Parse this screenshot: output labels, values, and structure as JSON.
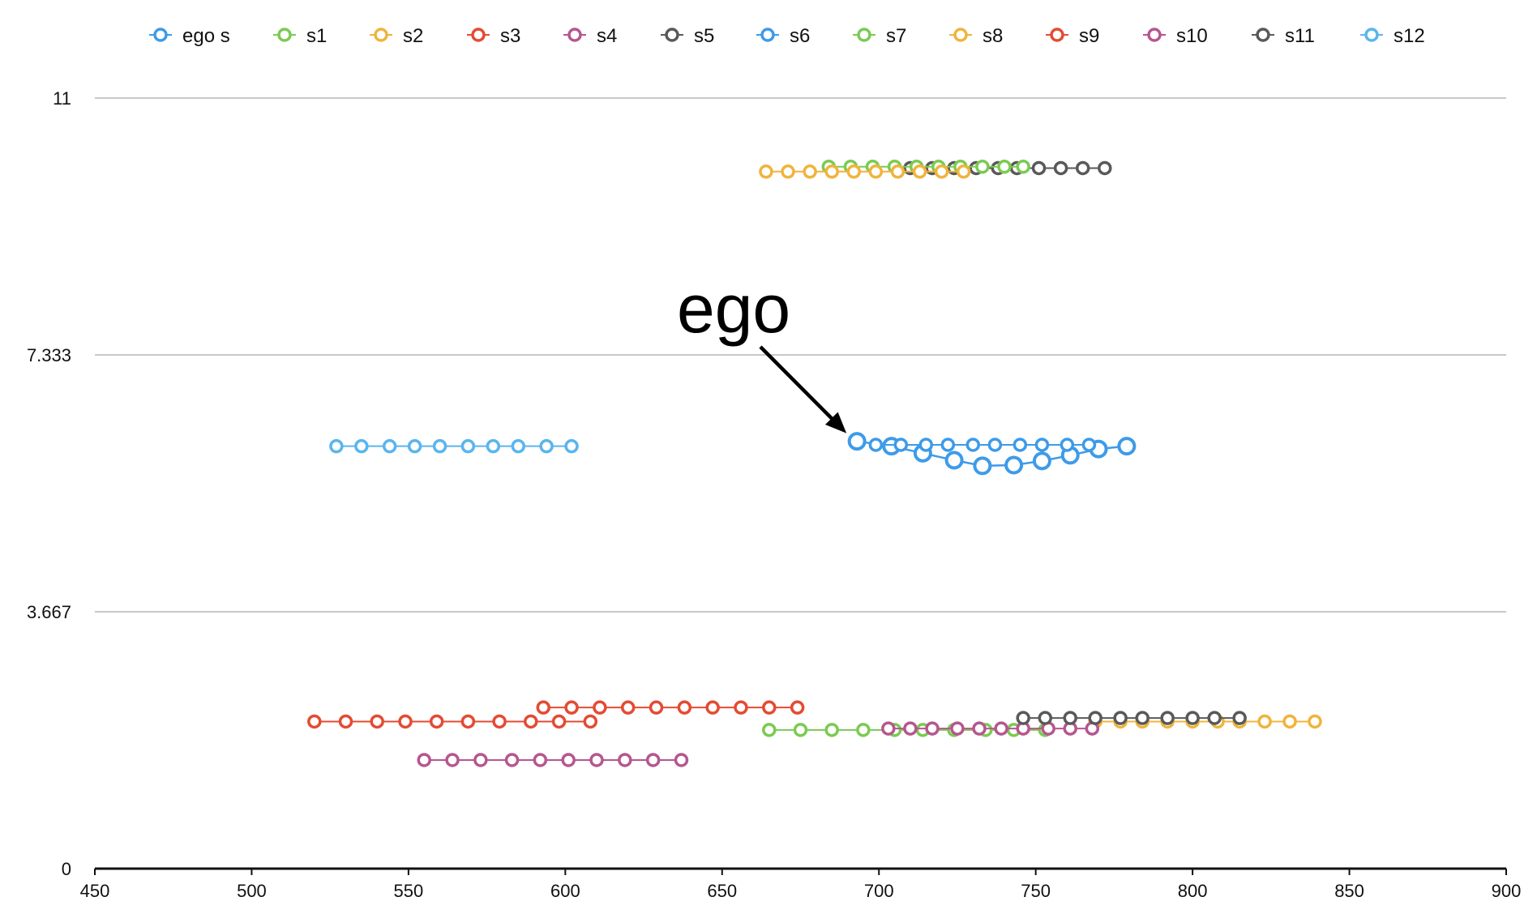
{
  "chart_data": {
    "type": "line",
    "title": "",
    "xlabel": "",
    "ylabel": "",
    "xlim": [
      450,
      900
    ],
    "ylim": [
      0,
      11
    ],
    "x_ticks": [
      "450",
      "500",
      "550",
      "600",
      "650",
      "700",
      "750",
      "800",
      "850",
      "900"
    ],
    "y_ticks": [
      "0",
      "3.667",
      "7.333",
      "11"
    ],
    "grid": true,
    "legend_position": "top",
    "annotation": {
      "text": "ego",
      "points_to": [
        693,
        6.1
      ]
    },
    "series": [
      {
        "name": "ego s",
        "color": "#3d9be9",
        "points": [
          [
            693,
            6.1
          ],
          [
            704,
            6.03
          ],
          [
            714,
            5.93
          ],
          [
            724,
            5.83
          ],
          [
            733,
            5.75
          ],
          [
            743,
            5.76
          ],
          [
            752,
            5.82
          ],
          [
            761,
            5.9
          ],
          [
            770,
            5.99
          ],
          [
            779,
            6.03
          ]
        ]
      },
      {
        "name": "s1",
        "color": "#7bcb52",
        "points": [
          [
            665,
            1.98
          ],
          [
            675,
            1.98
          ],
          [
            685,
            1.98
          ],
          [
            695,
            1.98
          ],
          [
            705,
            1.98
          ],
          [
            714,
            1.98
          ],
          [
            724,
            1.98
          ],
          [
            734,
            1.98
          ],
          [
            743,
            1.98
          ],
          [
            753,
            1.98
          ]
        ]
      },
      {
        "name": "s2",
        "color": "#f0b43c",
        "points": [
          [
            769,
            2.1
          ],
          [
            777,
            2.1
          ],
          [
            784,
            2.1
          ],
          [
            792,
            2.1
          ],
          [
            800,
            2.1
          ],
          [
            808,
            2.1
          ],
          [
            815,
            2.1
          ],
          [
            823,
            2.1
          ],
          [
            831,
            2.1
          ],
          [
            839,
            2.1
          ]
        ]
      },
      {
        "name": "s3",
        "color": "#e44b33",
        "points": [
          [
            593,
            2.3
          ],
          [
            602,
            2.3
          ],
          [
            611,
            2.3
          ],
          [
            620,
            2.3
          ],
          [
            629,
            2.3
          ],
          [
            638,
            2.3
          ],
          [
            647,
            2.3
          ],
          [
            656,
            2.3
          ],
          [
            665,
            2.3
          ],
          [
            674,
            2.3
          ]
        ]
      },
      {
        "name": "s4",
        "color": "#b5578f",
        "points": [
          [
            555,
            1.55
          ],
          [
            564,
            1.55
          ],
          [
            573,
            1.55
          ],
          [
            583,
            1.55
          ],
          [
            592,
            1.55
          ],
          [
            601,
            1.55
          ],
          [
            610,
            1.55
          ],
          [
            619,
            1.55
          ],
          [
            628,
            1.55
          ],
          [
            637,
            1.55
          ]
        ]
      },
      {
        "name": "s5",
        "color": "#595959",
        "points": [
          [
            710,
            10.0
          ],
          [
            717,
            10.0
          ],
          [
            724,
            10.0
          ],
          [
            731,
            10.0
          ],
          [
            738,
            10.0
          ],
          [
            744,
            10.0
          ],
          [
            751,
            10.0
          ],
          [
            758,
            10.0
          ],
          [
            765,
            10.0
          ],
          [
            772,
            10.0
          ]
        ]
      },
      {
        "name": "s6",
        "color": "#3d9be9",
        "points": [
          [
            699,
            6.05
          ],
          [
            707,
            6.05
          ],
          [
            715,
            6.05
          ],
          [
            722,
            6.05
          ],
          [
            730,
            6.05
          ],
          [
            737,
            6.05
          ],
          [
            745,
            6.05
          ],
          [
            752,
            6.05
          ],
          [
            760,
            6.05
          ],
          [
            767,
            6.05
          ]
        ]
      },
      {
        "name": "s7",
        "color": "#7bcb52",
        "points": [
          [
            684,
            10.02
          ],
          [
            691,
            10.02
          ],
          [
            698,
            10.02
          ],
          [
            705,
            10.02
          ],
          [
            712,
            10.02
          ],
          [
            719,
            10.02
          ],
          [
            726,
            10.02
          ],
          [
            733,
            10.02
          ],
          [
            740,
            10.02
          ],
          [
            746,
            10.02
          ]
        ]
      },
      {
        "name": "s8",
        "color": "#f0b43c",
        "points": [
          [
            664,
            9.95
          ],
          [
            671,
            9.95
          ],
          [
            678,
            9.95
          ],
          [
            685,
            9.95
          ],
          [
            692,
            9.95
          ],
          [
            699,
            9.95
          ],
          [
            706,
            9.95
          ],
          [
            713,
            9.95
          ],
          [
            720,
            9.95
          ],
          [
            727,
            9.95
          ]
        ]
      },
      {
        "name": "s9",
        "color": "#e44b33",
        "points": [
          [
            520,
            2.1
          ],
          [
            530,
            2.1
          ],
          [
            540,
            2.1
          ],
          [
            549,
            2.1
          ],
          [
            559,
            2.1
          ],
          [
            569,
            2.1
          ],
          [
            579,
            2.1
          ],
          [
            589,
            2.1
          ],
          [
            598,
            2.1
          ],
          [
            608,
            2.1
          ]
        ]
      },
      {
        "name": "s10",
        "color": "#b5578f",
        "points": [
          [
            703,
            2.0
          ],
          [
            710,
            2.0
          ],
          [
            717,
            2.0
          ],
          [
            725,
            2.0
          ],
          [
            732,
            2.0
          ],
          [
            739,
            2.0
          ],
          [
            746,
            2.0
          ],
          [
            754,
            2.0
          ],
          [
            761,
            2.0
          ],
          [
            768,
            2.0
          ]
        ]
      },
      {
        "name": "s11",
        "color": "#595959",
        "points": [
          [
            746,
            2.15
          ],
          [
            753,
            2.15
          ],
          [
            761,
            2.15
          ],
          [
            769,
            2.15
          ],
          [
            777,
            2.15
          ],
          [
            784,
            2.15
          ],
          [
            792,
            2.15
          ],
          [
            800,
            2.15
          ],
          [
            807,
            2.15
          ],
          [
            815,
            2.15
          ]
        ]
      },
      {
        "name": "s12",
        "color": "#5ab5ee",
        "points": [
          [
            527,
            6.03
          ],
          [
            535,
            6.03
          ],
          [
            544,
            6.03
          ],
          [
            552,
            6.03
          ],
          [
            560,
            6.03
          ],
          [
            569,
            6.03
          ],
          [
            577,
            6.03
          ],
          [
            585,
            6.03
          ],
          [
            594,
            6.03
          ],
          [
            602,
            6.03
          ]
        ]
      }
    ]
  }
}
